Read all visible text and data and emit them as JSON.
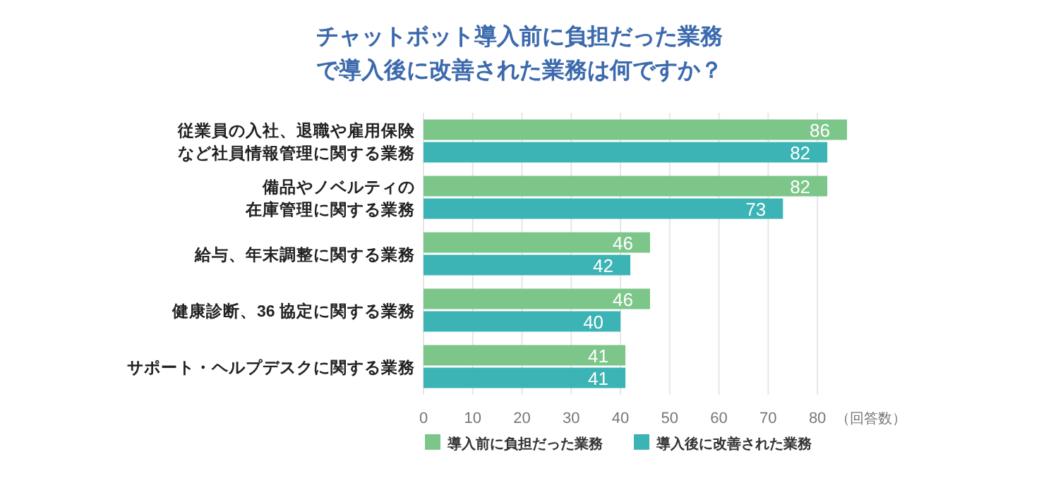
{
  "chart_data": {
    "type": "bar",
    "orientation": "horizontal",
    "title": "チャットボット導入前に負担だった業務で導入後に改善された業務は何ですか？",
    "categories": [
      "従業員の入社、退職や雇用保険など社員情報管理に関する業務",
      "備品やノベルティの在庫管理に関する業務",
      "給与、年末調整に関する業務",
      "健康診断、36 協定に関する業務",
      "サポート・ヘルプデスクに関する業務"
    ],
    "series": [
      {
        "name": "導入前に負担だった業務",
        "color": "#7cc68a",
        "values": [
          86,
          82,
          46,
          46,
          41
        ]
      },
      {
        "name": "導入後に改善された業務",
        "color": "#3cb3b4",
        "values": [
          82,
          73,
          42,
          40,
          41
        ]
      }
    ],
    "xlabel": "（回答数）",
    "xlim": [
      0,
      86
    ],
    "xticks": [
      0,
      10,
      20,
      30,
      40,
      50,
      60,
      70,
      80
    ],
    "grid": "x",
    "data_labels": true,
    "legend": "bottom"
  }
}
